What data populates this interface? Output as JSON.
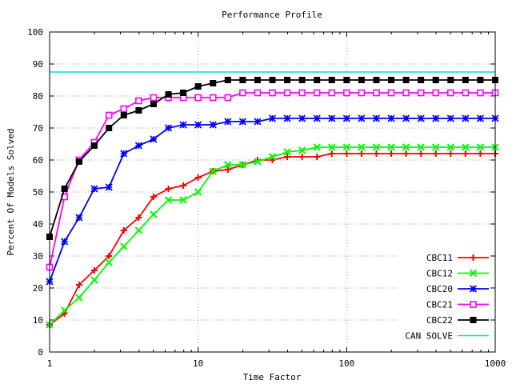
{
  "chart_data": {
    "type": "line",
    "title": "Performance Profile",
    "xlabel": "Time Factor",
    "ylabel": "Percent Of Models Solved",
    "x_scale": "log",
    "xlim": [
      1,
      1000
    ],
    "ylim": [
      0,
      100
    ],
    "x_ticks": [
      1,
      10,
      100,
      1000
    ],
    "x_tick_labels": [
      "1",
      "10",
      "100",
      "1000"
    ],
    "y_ticks": [
      0,
      10,
      20,
      30,
      40,
      50,
      60,
      70,
      80,
      90,
      100
    ],
    "y_tick_labels": [
      "0",
      "10",
      "20",
      "30",
      "40",
      "50",
      "60",
      "70",
      "80",
      "90",
      "100"
    ],
    "grid": true,
    "legend_position": "bottom-right",
    "x": [
      1,
      1.26,
      1.58,
      2,
      2.51,
      3.16,
      3.98,
      5.01,
      6.31,
      7.94,
      10,
      12.59,
      15.85,
      19.95,
      25.12,
      31.62,
      39.81,
      50.12,
      63.1,
      79.43,
      100,
      125.89,
      158.49,
      199.53,
      251.19,
      316.23,
      398.11,
      501.19,
      630.96,
      794.33,
      1000
    ],
    "series": [
      {
        "name": "CBC11",
        "color": "#ff0000",
        "marker": "plus",
        "values": [
          8.5,
          12,
          21,
          25.5,
          30,
          38,
          42,
          48.5,
          51,
          52,
          54.5,
          56.5,
          57,
          58.5,
          60,
          60,
          61,
          61,
          61,
          62,
          62,
          62,
          62,
          62,
          62,
          62,
          62,
          62,
          62,
          62,
          62
        ]
      },
      {
        "name": "CBC12",
        "color": "#00ff00",
        "marker": "x",
        "values": [
          8.5,
          13,
          17,
          22.5,
          28,
          33,
          38,
          43,
          47.5,
          47.5,
          50,
          56.5,
          58.5,
          58.5,
          59.5,
          61,
          62.5,
          63,
          64,
          64,
          64,
          64,
          64,
          64,
          64,
          64,
          64,
          64,
          64,
          64,
          64
        ]
      },
      {
        "name": "CBC20",
        "color": "#0000ff",
        "marker": "star",
        "values": [
          22,
          34.5,
          42,
          51,
          51.5,
          62,
          64.5,
          66.5,
          70,
          71,
          71,
          71,
          72,
          72,
          72,
          73,
          73,
          73,
          73,
          73,
          73,
          73,
          73,
          73,
          73,
          73,
          73,
          73,
          73,
          73,
          73
        ]
      },
      {
        "name": "CBC21",
        "color": "#ff00ff",
        "marker": "open-square",
        "values": [
          26.5,
          48.5,
          60,
          65.5,
          74,
          76,
          78.5,
          79.5,
          79.5,
          79.5,
          79.5,
          79.5,
          79.5,
          81,
          81,
          81,
          81,
          81,
          81,
          81,
          81,
          81,
          81,
          81,
          81,
          81,
          81,
          81,
          81,
          81,
          81
        ]
      },
      {
        "name": "CBC22",
        "color": "#000000",
        "marker": "filled-square",
        "values": [
          36,
          51,
          59.5,
          64.5,
          70,
          74,
          75.5,
          77.5,
          80.5,
          81,
          83,
          84,
          85,
          85,
          85,
          85,
          85,
          85,
          85,
          85,
          85,
          85,
          85,
          85,
          85,
          85,
          85,
          85,
          85,
          85,
          85
        ]
      },
      {
        "name": "CAN SOLVE",
        "color": "#00e0e0",
        "marker": "none",
        "constant": 87.5
      }
    ]
  }
}
